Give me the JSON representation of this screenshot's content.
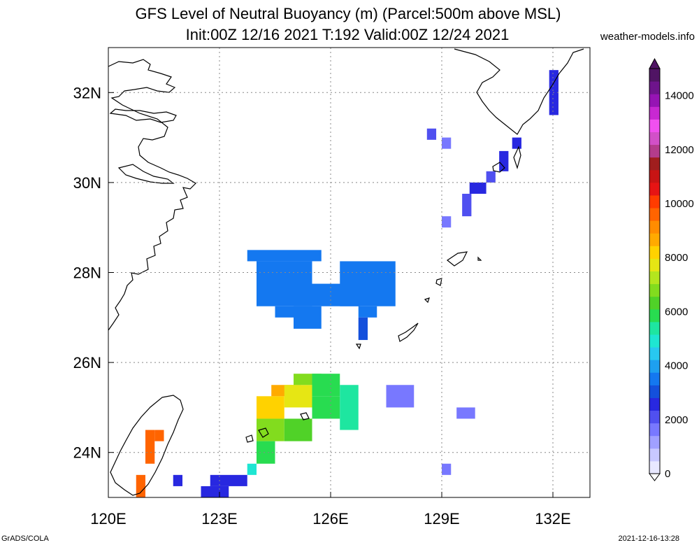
{
  "header": {
    "title_line1": "GFS Level of Neutral Buoyancy (m) (Parcel:500m above MSL)",
    "title_line2": "Init:00Z 12/16 2021 T:192 Valid:00Z 12/24 2021",
    "source": "weather-models.info"
  },
  "footer": {
    "left": "GrADS/COLA",
    "right": "2021-12-16-13:28"
  },
  "chart_data": {
    "type": "heatmap",
    "title": "GFS Level of Neutral Buoyancy (m) (Parcel:500m above MSL)",
    "subtitle": "Init:00Z 12/16 2021 T:192 Valid:00Z 12/24 2021",
    "xlim": [
      120,
      133
    ],
    "ylim": [
      23,
      33
    ],
    "x_ticks": [
      120,
      123,
      126,
      129,
      132
    ],
    "x_tick_labels": [
      "120E",
      "123E",
      "126E",
      "129E",
      "132E"
    ],
    "y_ticks": [
      24,
      26,
      28,
      30,
      32
    ],
    "y_tick_labels": [
      "24N",
      "26N",
      "28N",
      "30N",
      "32N"
    ],
    "grid": true,
    "colorbar": {
      "range": [
        0,
        15000
      ],
      "tick_values": [
        0,
        2000,
        4000,
        6000,
        8000,
        10000,
        12000,
        14000
      ],
      "tick_labels": [
        "0",
        "2000",
        "4000",
        "6000",
        "8000",
        "10000",
        "12000",
        "14000"
      ],
      "colors": [
        "#e8e8ff",
        "#c8c8ff",
        "#a0a0ff",
        "#7878ff",
        "#5050f0",
        "#2828e0",
        "#1450dc",
        "#1478f0",
        "#1ea0f0",
        "#28c8f0",
        "#1ee6d2",
        "#1ee6a0",
        "#28dc50",
        "#50d228",
        "#82dc1e",
        "#b4e61e",
        "#e6e614",
        "#ffd200",
        "#ffaa00",
        "#ff8c00",
        "#ff6400",
        "#ff3c00",
        "#e61414",
        "#c81414",
        "#a01e1e",
        "#b43c8c",
        "#d250c8",
        "#f050f0",
        "#c828d2",
        "#9614b4",
        "#6e148c",
        "#501464"
      ]
    },
    "cells": [
      {
        "lon": 131.9,
        "lat": 31.5,
        "w": 0.25,
        "h": 1.0,
        "value": 2600
      },
      {
        "lon": 130.9,
        "lat": 30.75,
        "w": 0.25,
        "h": 0.25,
        "value": 2600
      },
      {
        "lon": 130.55,
        "lat": 30.25,
        "w": 0.25,
        "h": 0.45,
        "value": 2600
      },
      {
        "lon": 130.2,
        "lat": 30.0,
        "w": 0.25,
        "h": 0.25,
        "value": 2100
      },
      {
        "lon": 129.75,
        "lat": 29.75,
        "w": 0.45,
        "h": 0.25,
        "value": 2600
      },
      {
        "lon": 129.55,
        "lat": 29.25,
        "w": 0.25,
        "h": 0.5,
        "value": 2100
      },
      {
        "lon": 129.0,
        "lat": 29.0,
        "w": 0.25,
        "h": 0.25,
        "value": 1600
      },
      {
        "lon": 128.6,
        "lat": 30.95,
        "w": 0.25,
        "h": 0.25,
        "value": 2100
      },
      {
        "lon": 129.0,
        "lat": 30.75,
        "w": 0.25,
        "h": 0.25,
        "value": 1600
      },
      {
        "lon": 123.75,
        "lat": 28.25,
        "w": 2.0,
        "h": 0.25,
        "value": 3600
      },
      {
        "lon": 124.0,
        "lat": 27.25,
        "w": 1.5,
        "h": 1.0,
        "value": 3400
      },
      {
        "lon": 124.5,
        "lat": 27.0,
        "w": 1.0,
        "h": 0.25,
        "value": 3400
      },
      {
        "lon": 125.0,
        "lat": 26.75,
        "w": 0.75,
        "h": 0.5,
        "value": 3600
      },
      {
        "lon": 125.5,
        "lat": 27.25,
        "w": 1.3,
        "h": 0.5,
        "value": 3300
      },
      {
        "lon": 126.25,
        "lat": 27.25,
        "w": 1.5,
        "h": 1.0,
        "value": 3500
      },
      {
        "lon": 126.75,
        "lat": 27.0,
        "w": 0.5,
        "h": 0.25,
        "value": 3500
      },
      {
        "lon": 126.75,
        "lat": 26.5,
        "w": 0.25,
        "h": 0.5,
        "value": 3000
      },
      {
        "lon": 124.0,
        "lat": 24.75,
        "w": 0.75,
        "h": 0.5,
        "value": 8200
      },
      {
        "lon": 124.4,
        "lat": 25.25,
        "w": 0.8,
        "h": 0.25,
        "value": 8500
      },
      {
        "lon": 124.75,
        "lat": 25.0,
        "w": 0.75,
        "h": 0.5,
        "value": 7800
      },
      {
        "lon": 125.0,
        "lat": 25.5,
        "w": 0.75,
        "h": 0.25,
        "value": 6800
      },
      {
        "lon": 125.5,
        "lat": 25.25,
        "w": 0.75,
        "h": 0.5,
        "value": 6000
      },
      {
        "lon": 125.5,
        "lat": 24.75,
        "w": 0.75,
        "h": 0.5,
        "value": 6000
      },
      {
        "lon": 126.25,
        "lat": 24.5,
        "w": 0.5,
        "h": 1.0,
        "value": 5200
      },
      {
        "lon": 124.0,
        "lat": 24.25,
        "w": 0.75,
        "h": 0.5,
        "value": 6900
      },
      {
        "lon": 124.75,
        "lat": 24.25,
        "w": 0.75,
        "h": 0.5,
        "value": 6400
      },
      {
        "lon": 124.0,
        "lat": 23.75,
        "w": 0.5,
        "h": 0.5,
        "value": 5800
      },
      {
        "lon": 123.75,
        "lat": 23.5,
        "w": 0.25,
        "h": 0.25,
        "value": 5000
      },
      {
        "lon": 122.75,
        "lat": 23.25,
        "w": 1.0,
        "h": 0.25,
        "value": 2800
      },
      {
        "lon": 122.5,
        "lat": 23.0,
        "w": 0.75,
        "h": 0.25,
        "value": 2800
      },
      {
        "lon": 121.75,
        "lat": 23.25,
        "w": 0.25,
        "h": 0.25,
        "value": 2600
      },
      {
        "lon": 121.0,
        "lat": 23.75,
        "w": 0.25,
        "h": 0.75,
        "value": 9800
      },
      {
        "lon": 121.25,
        "lat": 24.25,
        "w": 0.25,
        "h": 0.25,
        "value": 9600
      },
      {
        "lon": 120.75,
        "lat": 23.0,
        "w": 0.25,
        "h": 0.5,
        "value": 9600
      },
      {
        "lon": 127.5,
        "lat": 25.0,
        "w": 0.75,
        "h": 0.5,
        "value": 1700
      },
      {
        "lon": 129.4,
        "lat": 24.75,
        "w": 0.5,
        "h": 0.25,
        "value": 1700
      },
      {
        "lon": 129.0,
        "lat": 23.5,
        "w": 0.25,
        "h": 0.25,
        "value": 1600
      }
    ]
  }
}
